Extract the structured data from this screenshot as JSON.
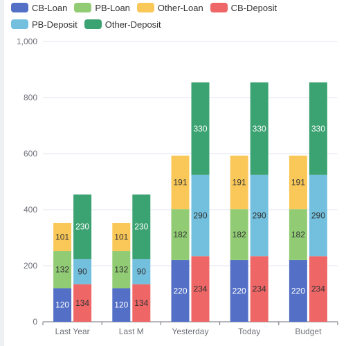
{
  "colors": {
    "CB-Loan": "#5470c6",
    "PB-Loan": "#91cc75",
    "Other-Loan": "#fac858",
    "CB-Deposit": "#ee6666",
    "PB-Deposit": "#73c0de",
    "Other-Deposit": "#3ba272"
  },
  "legend": [
    "CB-Loan",
    "PB-Loan",
    "Other-Loan",
    "CB-Deposit",
    "PB-Deposit",
    "Other-Deposit"
  ],
  "chart_data": {
    "type": "bar",
    "stacked": true,
    "categories": [
      "Last Year",
      "Last M",
      "Yesterday",
      "Today",
      "Budget"
    ],
    "ylim": [
      0,
      1000
    ],
    "yticks": [
      "0",
      "200",
      "400",
      "600",
      "800",
      "1,000"
    ],
    "grid": true,
    "legend_position": "top",
    "stacks": [
      {
        "stack": "Loan",
        "series": [
          {
            "name": "CB-Loan",
            "values": [
              120,
              120,
              220,
              220,
              220
            ]
          },
          {
            "name": "PB-Loan",
            "values": [
              132,
              132,
              182,
              182,
              182
            ]
          },
          {
            "name": "Other-Loan",
            "values": [
              101,
              101,
              191,
              191,
              191
            ]
          }
        ]
      },
      {
        "stack": "Deposit",
        "series": [
          {
            "name": "CB-Deposit",
            "values": [
              134,
              134,
              234,
              234,
              234
            ]
          },
          {
            "name": "PB-Deposit",
            "values": [
              90,
              90,
              290,
              290,
              290
            ]
          },
          {
            "name": "Other-Deposit",
            "values": [
              230,
              230,
              330,
              330,
              330
            ]
          }
        ]
      }
    ]
  }
}
